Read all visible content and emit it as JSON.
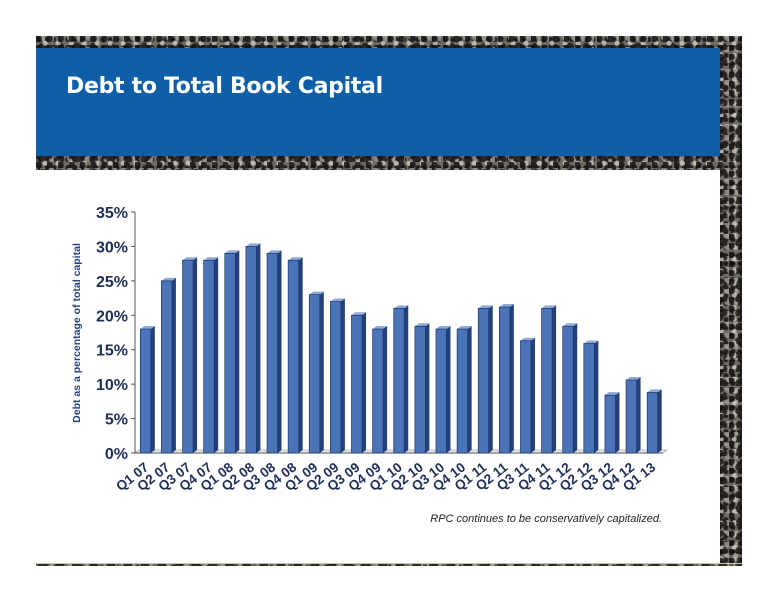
{
  "slide": {
    "title": "Debt to Total Book Capital",
    "caption": "RPC continues to be conservatively capitalized."
  },
  "colors": {
    "header": "#0e5ea8",
    "bar_front": "#4a73b8",
    "bar_side": "#23407a",
    "bar_top": "#8fa8d8",
    "axis_text": "#1f2f5a"
  },
  "chart_data": {
    "type": "bar",
    "title": "",
    "xlabel": "",
    "ylabel": "Debt as a percentage of total capital",
    "ylim": [
      0,
      35
    ],
    "y_ticks": [
      "0%",
      "5%",
      "10%",
      "15%",
      "20%",
      "25%",
      "30%",
      "35%"
    ],
    "grid": false,
    "legend": "none",
    "categories": [
      "Q1 07",
      "Q2 07",
      "Q3 07",
      "Q4 07",
      "Q1 08",
      "Q2 08",
      "Q3 08",
      "Q4 08",
      "Q1 09",
      "Q2 09",
      "Q3 09",
      "Q4 09",
      "Q1 10",
      "Q2 10",
      "Q3 10",
      "Q4 10",
      "Q1 11",
      "Q2 11",
      "Q3 11",
      "Q4 11",
      "Q1 12",
      "Q2 12",
      "Q3 12",
      "Q4 12",
      "Q1 13"
    ],
    "values": [
      18,
      25,
      28,
      28,
      29,
      30,
      29,
      28,
      23,
      22,
      20,
      18,
      21,
      18.4,
      18,
      18,
      21,
      21.2,
      16.3,
      21,
      18.4,
      15.9,
      8.4,
      10.6,
      8.8
    ]
  }
}
